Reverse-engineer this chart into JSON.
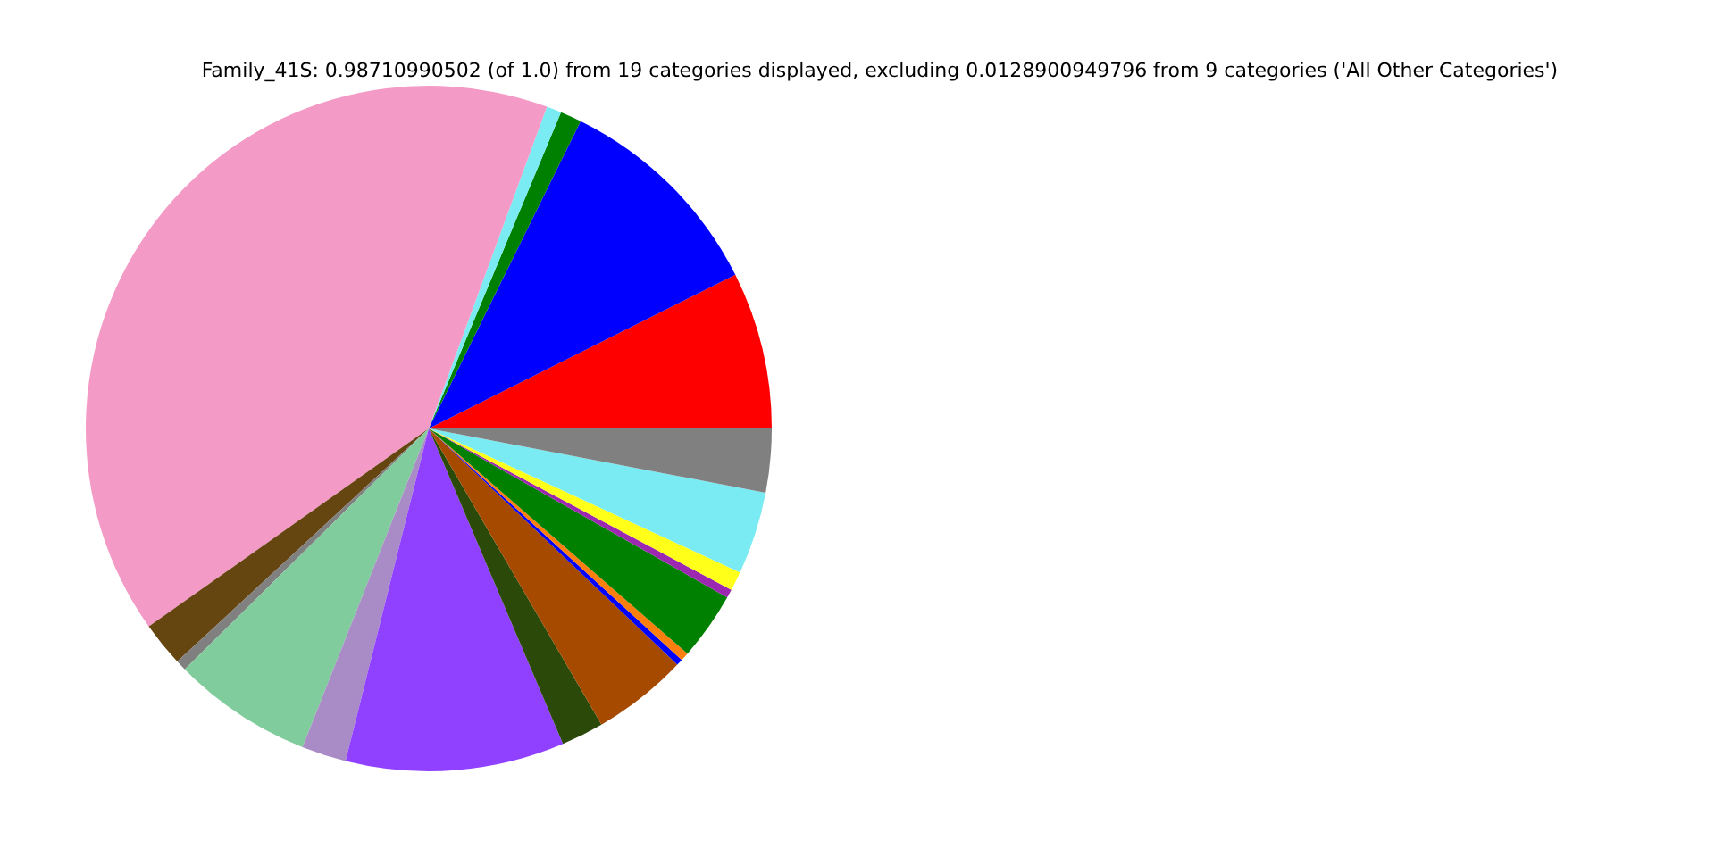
{
  "chart_data": {
    "type": "pie",
    "title": "Family_41S: 0.98710990502 (of 1.0) from 19 categories displayed, excluding 0.0128900949796 from 9 categories ('All Other Categories')",
    "categories": [
      null,
      null,
      null,
      null,
      null,
      null,
      null,
      null,
      null,
      null,
      null,
      null,
      null,
      null,
      null,
      null,
      null,
      null,
      null
    ],
    "values": [
      7.4,
      10.3,
      1.0,
      0.7,
      40.4,
      2.1,
      0.5,
      6.6,
      2.1,
      10.3,
      2.0,
      4.5,
      0.3,
      0.4,
      3.2,
      0.4,
      0.9,
      3.9,
      3.0
    ],
    "colors": [
      "#ff0000",
      "#0000ff",
      "#008000",
      "#7aebf2",
      "#f49ac6",
      "#654510",
      "#808080",
      "#80cc9c",
      "#a98bc5",
      "#9040ff",
      "#2b4a09",
      "#a64a00",
      "#0000ff",
      "#ff7f0e",
      "#008000",
      "#9c27b0",
      "#ffff1a",
      "#7aebf2",
      "#808080"
    ],
    "legend": false
  }
}
